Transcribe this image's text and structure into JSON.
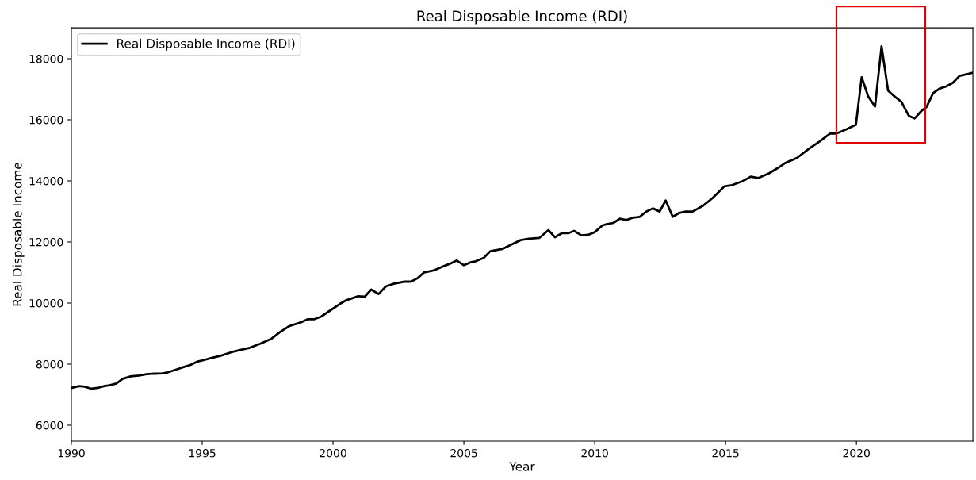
{
  "chart_data": {
    "type": "line",
    "title": "Real Disposable Income (RDI)",
    "xlabel": "Year",
    "ylabel": "Real Disposable Income",
    "xlim": [
      1990,
      2024.45
    ],
    "xticks": [
      1990,
      1995,
      2000,
      2005,
      2010,
      2015,
      2020
    ],
    "ylim": [
      5480,
      19010
    ],
    "yticks": [
      6000,
      8000,
      10000,
      12000,
      14000,
      16000,
      18000
    ],
    "grid": false,
    "legend": "top left",
    "marker": "none",
    "line_style": "solid",
    "x": [
      1990.0,
      1990.3,
      1990.51,
      1990.76,
      1991.01,
      1991.26,
      1991.46,
      1991.72,
      1991.97,
      1992.27,
      1992.58,
      1992.88,
      1993.18,
      1993.48,
      1993.69,
      1993.99,
      1994.29,
      1994.55,
      1994.8,
      1995.05,
      1995.3,
      1995.71,
      1996.11,
      1996.52,
      1996.82,
      1997.22,
      1997.63,
      1997.98,
      1998.33,
      1998.74,
      1999.04,
      1999.29,
      1999.55,
      1999.95,
      2000.25,
      2000.51,
      2000.76,
      2000.96,
      2001.21,
      2001.46,
      2001.74,
      2002.02,
      2002.32,
      2002.73,
      2002.98,
      2003.23,
      2003.48,
      2003.84,
      2004.14,
      2004.45,
      2004.73,
      2005.0,
      2005.25,
      2005.45,
      2005.76,
      2006.01,
      2006.46,
      2006.77,
      2007.17,
      2007.48,
      2007.88,
      2008.23,
      2008.48,
      2008.74,
      2008.99,
      2009.21,
      2009.49,
      2009.75,
      2010.0,
      2010.3,
      2010.45,
      2010.71,
      2010.96,
      2011.21,
      2011.46,
      2011.72,
      2011.97,
      2012.22,
      2012.48,
      2012.71,
      2012.98,
      2013.23,
      2013.48,
      2013.74,
      2014.14,
      2014.49,
      2014.95,
      2015.25,
      2015.66,
      2015.96,
      2016.26,
      2016.67,
      2016.97,
      2017.27,
      2017.73,
      2018.18,
      2018.59,
      2018.99,
      2019.24,
      2019.6,
      2019.98,
      2020.2,
      2020.45,
      2020.71,
      2020.96,
      2021.21,
      2021.46,
      2021.72,
      2022.0,
      2022.22,
      2022.48,
      2022.68,
      2022.93,
      2023.18,
      2023.43,
      2023.69,
      2023.94,
      2024.24,
      2024.45
    ],
    "series": [
      {
        "name": "Real Disposable Income (RDI)",
        "color": "#000000",
        "values": [
          7221,
          7281,
          7264,
          7195,
          7221,
          7281,
          7307,
          7368,
          7524,
          7602,
          7628,
          7671,
          7688,
          7697,
          7732,
          7818,
          7905,
          7974,
          8078,
          8130,
          8190,
          8277,
          8390,
          8476,
          8537,
          8667,
          8823,
          9056,
          9247,
          9359,
          9472,
          9472,
          9558,
          9792,
          9965,
          10095,
          10164,
          10225,
          10208,
          10442,
          10294,
          10545,
          10632,
          10701,
          10701,
          10814,
          11005,
          11065,
          11177,
          11281,
          11394,
          11238,
          11333,
          11368,
          11480,
          11697,
          11766,
          11896,
          12061,
          12104,
          12130,
          12390,
          12156,
          12286,
          12286,
          12364,
          12216,
          12234,
          12320,
          12545,
          12580,
          12623,
          12762,
          12719,
          12796,
          12823,
          12996,
          13100,
          12996,
          13359,
          12823,
          12953,
          12996,
          12996,
          13187,
          13429,
          13818,
          13862,
          13992,
          14139,
          14095,
          14251,
          14407,
          14580,
          14753,
          15047,
          15290,
          15550,
          15550,
          15680,
          15836,
          17394,
          16762,
          16433,
          18407,
          16953,
          16762,
          16589,
          16130,
          16043,
          16286,
          16416,
          16874,
          17022,
          17091,
          17212,
          17437,
          17498,
          17541
        ]
      }
    ]
  }
}
